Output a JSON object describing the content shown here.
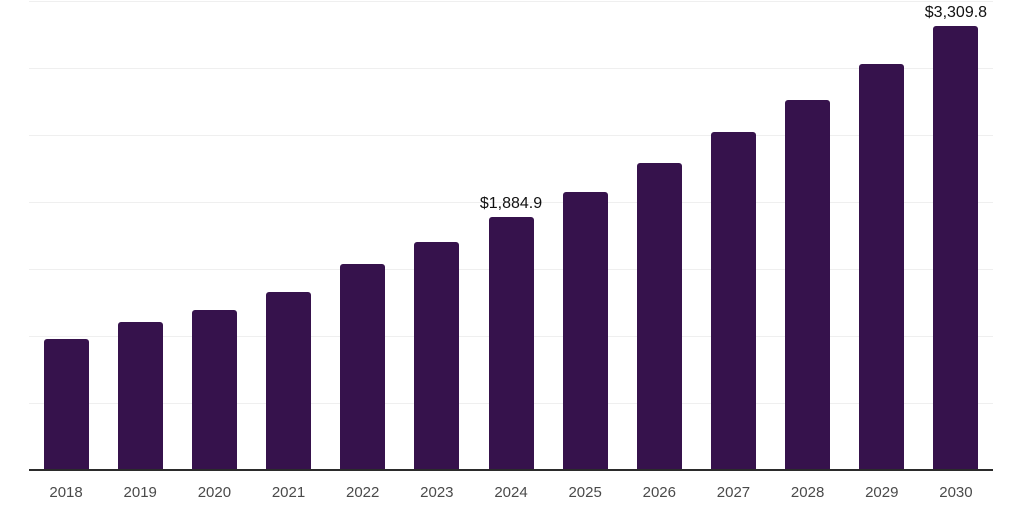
{
  "chart": {
    "background_color": "#ffffff",
    "bar_color": "#36124C",
    "axis_line_color": "#2b2b2b",
    "gridline_color": "#efefef",
    "x_label_color": "#4a4a4a",
    "data_label_color": "#111111"
  },
  "chart_data": {
    "type": "bar",
    "title": "",
    "xlabel": "",
    "ylabel": "",
    "categories": [
      "2018",
      "2019",
      "2020",
      "2021",
      "2022",
      "2023",
      "2024",
      "2025",
      "2026",
      "2027",
      "2028",
      "2029",
      "2030"
    ],
    "values": [
      976,
      1103,
      1192,
      1330,
      1534,
      1701,
      1884.9,
      2077,
      2294,
      2521,
      2762,
      3029,
      3309.8
    ],
    "ylim": [
      0,
      3500
    ],
    "gridline_interval": 500,
    "grid": "horizontal-only",
    "legend_position": "none",
    "y_axis_tick_labels_visible": false,
    "value_prefix": "$",
    "data_labels": [
      {
        "category": "2024",
        "text": "$1,884.9"
      },
      {
        "category": "2030",
        "text": "$3,309.8"
      }
    ]
  }
}
